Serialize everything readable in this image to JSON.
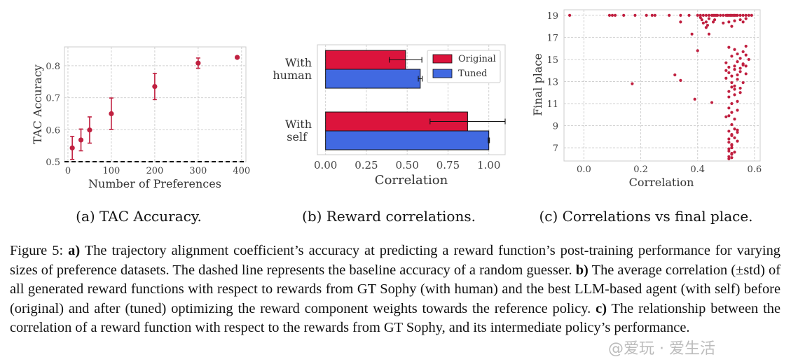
{
  "chart_data": [
    {
      "type": "scatter",
      "subcaption": "(a) TAC Accuracy.",
      "xlabel": "Number of Preferences",
      "ylabel": "TAC Accuracy",
      "xlim": [
        -8,
        410
      ],
      "ylim": [
        0.5,
        0.85
      ],
      "xticks": [
        0,
        100,
        200,
        300,
        400
      ],
      "yticks": [
        0.5,
        0.6,
        0.7,
        0.8
      ],
      "grid": true,
      "baseline": 0.5,
      "color": "#c02040",
      "points": [
        {
          "x": 10,
          "y": 0.543,
          "err": 0.036
        },
        {
          "x": 30,
          "y": 0.568,
          "err": 0.034
        },
        {
          "x": 50,
          "y": 0.599,
          "err": 0.041
        },
        {
          "x": 100,
          "y": 0.65,
          "err": 0.049
        },
        {
          "x": 200,
          "y": 0.735,
          "err": 0.041
        },
        {
          "x": 300,
          "y": 0.808,
          "err": 0.016
        },
        {
          "x": 390,
          "y": 0.826,
          "err": 0.0
        }
      ]
    },
    {
      "type": "bar",
      "orientation": "horizontal",
      "subcaption": "(b) Reward correlations.",
      "xlabel": "Correlation",
      "xlim": [
        -0.05,
        1.1
      ],
      "xticks": [
        0.0,
        0.25,
        0.5,
        0.75,
        1.0
      ],
      "categories": [
        [
          "With",
          "human"
        ],
        [
          "With",
          "self"
        ]
      ],
      "grid": true,
      "legend_position": "top-right",
      "series": [
        {
          "name": "Original",
          "color": "#dc143c",
          "values": [
            0.49,
            0.87
          ],
          "errors": [
            0.1,
            0.23
          ]
        },
        {
          "name": "Tuned",
          "color": "#4169e1",
          "values": [
            0.58,
            1.0
          ],
          "errors": [
            0.012,
            0.004
          ]
        }
      ]
    },
    {
      "type": "scatter",
      "subcaption": "(c) Correlations vs final place.",
      "xlabel": "Correlation",
      "ylabel": "Final place",
      "xlim": [
        -0.07,
        0.62
      ],
      "ylim": [
        5.8,
        19.5
      ],
      "xticks": [
        0.0,
        0.2,
        0.4,
        0.6
      ],
      "yticks": [
        7,
        9,
        11,
        13,
        15,
        17,
        19
      ],
      "grid": true,
      "color": "#c02040",
      "x": [
        -0.05,
        0.09,
        0.1,
        0.11,
        0.14,
        0.18,
        0.22,
        0.24,
        0.25,
        0.3,
        0.34,
        0.37,
        0.4,
        0.41,
        0.42,
        0.43,
        0.44,
        0.45,
        0.455,
        0.46,
        0.465,
        0.47,
        0.48,
        0.49,
        0.5,
        0.505,
        0.51,
        0.515,
        0.52,
        0.525,
        0.53,
        0.535,
        0.54,
        0.55,
        0.56,
        0.57,
        0.58,
        0.59,
        0.41,
        0.415,
        0.42,
        0.43,
        0.435,
        0.44,
        0.455,
        0.46,
        0.34,
        0.43,
        0.49,
        0.51,
        0.52,
        0.53,
        0.55,
        0.56,
        0.57,
        0.38,
        0.44,
        0.4,
        0.51,
        0.53,
        0.56,
        0.57,
        0.52,
        0.54,
        0.55,
        0.57,
        0.58,
        0.5,
        0.54,
        0.56,
        0.51,
        0.53,
        0.55,
        0.56,
        0.57,
        0.5,
        0.51,
        0.52,
        0.53,
        0.54,
        0.55,
        0.57,
        0.17,
        0.32,
        0.34,
        0.5,
        0.52,
        0.53,
        0.54,
        0.55,
        0.56,
        0.51,
        0.52,
        0.53,
        0.55,
        0.39,
        0.51,
        0.52,
        0.53,
        0.54,
        0.45,
        0.51,
        0.52,
        0.54,
        0.5,
        0.51,
        0.53,
        0.52,
        0.51,
        0.53,
        0.54,
        0.52,
        0.54,
        0.51,
        0.52,
        0.53,
        0.51,
        0.52,
        0.54,
        0.52,
        0.51,
        0.52,
        0.51,
        0.52,
        0.51,
        0.52,
        0.53,
        0.51,
        0.52
      ],
      "y": [
        19,
        19,
        19,
        19,
        19,
        19,
        19,
        19,
        19,
        19,
        19,
        19,
        19,
        19,
        19,
        19,
        19,
        19,
        19,
        19,
        19,
        19,
        19,
        19,
        19,
        19,
        19,
        19,
        19,
        19,
        19,
        19,
        19,
        19,
        19,
        19,
        19,
        19,
        18.8,
        18.6,
        18.3,
        18.4,
        18.1,
        18.7,
        18.4,
        18.6,
        18.4,
        17.9,
        18.3,
        18.4,
        18.0,
        18.5,
        18.6,
        18.4,
        18.7,
        17.3,
        17.3,
        15.8,
        16.1,
        15.9,
        15.7,
        16.2,
        15.3,
        15.5,
        15.1,
        15.4,
        15.0,
        14.7,
        14.8,
        14.5,
        14.3,
        14.4,
        14.2,
        14.6,
        14.4,
        14.0,
        13.8,
        13.5,
        14.1,
        13.6,
        13.9,
        13.7,
        12.8,
        13.6,
        13.1,
        13.3,
        12.9,
        12.6,
        13.2,
        12.4,
        12.9,
        12.1,
        12.5,
        12.3,
        12.0,
        11.4,
        11.6,
        11.0,
        11.8,
        11.2,
        11.1,
        10.6,
        10.2,
        10.4,
        9.8,
        9.9,
        9.6,
        9.1,
        8.5,
        8.7,
        8.4,
        8.2,
        8.6,
        7.8,
        8.1,
        7.9,
        7.5,
        7.3,
        7.6,
        7.2,
        6.9,
        7.0,
        6.7,
        6.5,
        6.2,
        6.4,
        6.6,
        6.0,
        6.1
      ]
    }
  ],
  "caption": {
    "label": "Figure 5:",
    "a_marker": "a)",
    "a_text": "The trajectory alignment coefficient’s accuracy at predicting a reward function’s post-training performance for varying sizes of preference datasets. The dashed line represents the baseline accuracy of a random guesser.",
    "b_marker": "b)",
    "b_text": "The average correlation (±std) of all generated reward functions with respect to rewards from GT Sophy (with human) and the best LLM-based agent (with self) before (original) and after (tuned) optimizing the reward component weights towards the reference policy.",
    "c_marker": "c)",
    "c_text": "The relationship between the correlation of a reward function with respect to the rewards from GT Sophy, and its intermediate policy’s performance."
  },
  "watermark": "@爱玩 · 爱生活"
}
